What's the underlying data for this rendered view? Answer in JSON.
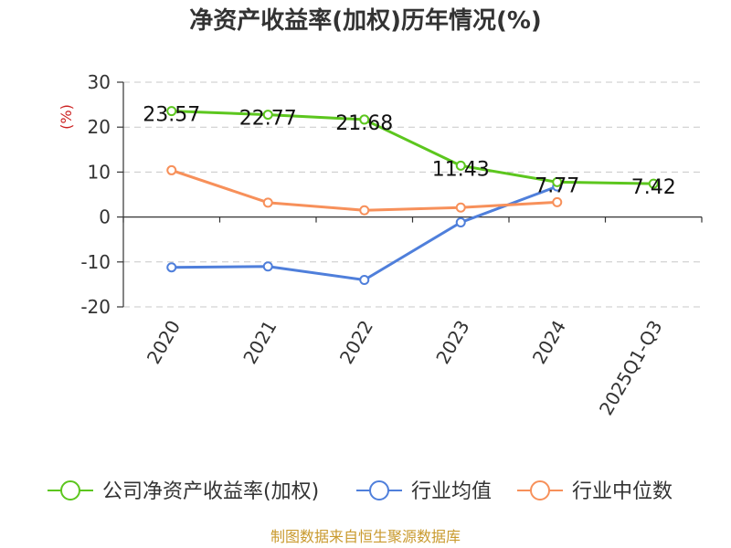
{
  "colors": {
    "company": "#5cc61e",
    "industry_avg": "#4f7fdb",
    "industry_median": "#f7905a",
    "footer": "#c99a2e",
    "ylabel": "#cc2222"
  },
  "footer": "制图数据来自恒生聚源数据库",
  "chart_data": {
    "type": "line",
    "title": "净资产收益率(加权)历年情况(%)",
    "ylabel": "(%)",
    "xlabel": "",
    "categories": [
      "2020",
      "2021",
      "2022",
      "2023",
      "2024",
      "2025Q1-Q3"
    ],
    "ylim": [
      -20,
      30
    ],
    "yticks": [
      -20,
      -10,
      0,
      10,
      20,
      30
    ],
    "grid": true,
    "legend": "bottom",
    "series": [
      {
        "name": "公司净资产收益率(加权)",
        "color_key": "company",
        "values": [
          23.57,
          22.77,
          21.68,
          11.43,
          7.77,
          7.42
        ],
        "labels": [
          "23.57",
          "22.77",
          "21.68",
          "11.43",
          "7.77",
          "7.42"
        ]
      },
      {
        "name": "行业均值",
        "color_key": "industry_avg",
        "values": [
          -11.2,
          -11.0,
          -14.0,
          -1.2,
          6.8,
          null
        ]
      },
      {
        "name": "行业中位数",
        "color_key": "industry_median",
        "values": [
          10.4,
          3.2,
          1.5,
          2.1,
          3.3,
          null
        ]
      }
    ]
  }
}
